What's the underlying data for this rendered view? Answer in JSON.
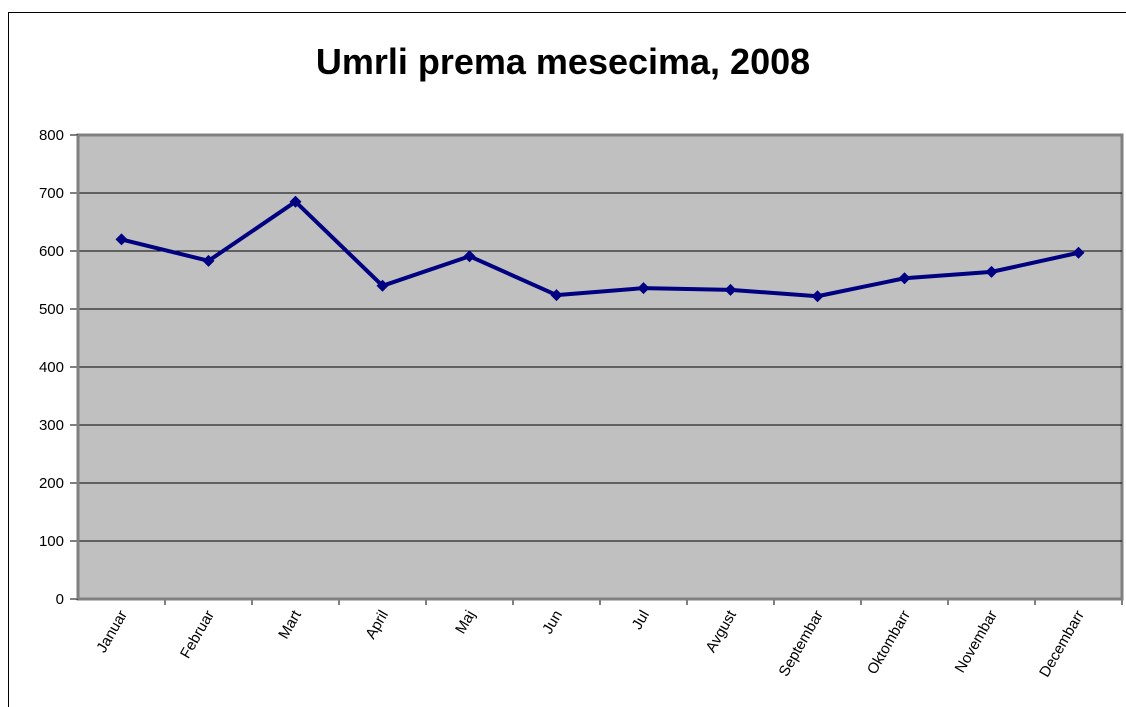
{
  "chart_data": {
    "type": "line",
    "title": "Umrli prema mesecima, 2008",
    "categories": [
      "Januar",
      "Februar",
      "Mart",
      "April",
      "Maj",
      "Jun",
      "Jul",
      "Avgust",
      "Septembar",
      "Oktombarr",
      "Novembar",
      "Decembarr"
    ],
    "values": [
      620,
      583,
      685,
      540,
      591,
      524,
      536,
      533,
      522,
      553,
      564,
      597
    ],
    "color": "#000080",
    "ylim": [
      0,
      800
    ],
    "yticks": [
      0,
      100,
      200,
      300,
      400,
      500,
      600,
      700,
      800
    ],
    "grid": true
  }
}
